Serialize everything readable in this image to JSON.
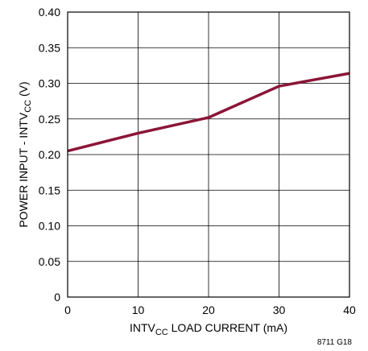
{
  "chart_data": {
    "type": "line",
    "xlabel": "INTVCC LOAD CURRENT (mA)",
    "xlabel_parts": {
      "pre": "INTV",
      "sub": "CC",
      "post": " LOAD CURRENT (mA)"
    },
    "ylabel": "POWER INPUT - INTVCC (V)",
    "ylabel_parts": {
      "pre": "POWER INPUT - INTV",
      "sub": "CC",
      "post": " (V)"
    },
    "xlim": [
      0,
      40
    ],
    "ylim": [
      0,
      0.4
    ],
    "x_ticks": [
      0,
      10,
      20,
      30,
      40
    ],
    "x_tick_labels": [
      "0",
      "10",
      "20",
      "30",
      "40"
    ],
    "y_ticks": [
      0,
      0.05,
      0.1,
      0.15,
      0.2,
      0.25,
      0.3,
      0.35,
      0.4
    ],
    "y_tick_labels": [
      "0",
      "0.05",
      "0.10",
      "0.15",
      "0.20",
      "0.25",
      "0.30",
      "0.35",
      "0.40"
    ],
    "grid": true,
    "series": [
      {
        "color": "#8b1538",
        "x": [
          0,
          10,
          20,
          30,
          40
        ],
        "y": [
          0.205,
          0.23,
          0.252,
          0.296,
          0.314
        ]
      }
    ],
    "figure_code": "8711 G18"
  }
}
